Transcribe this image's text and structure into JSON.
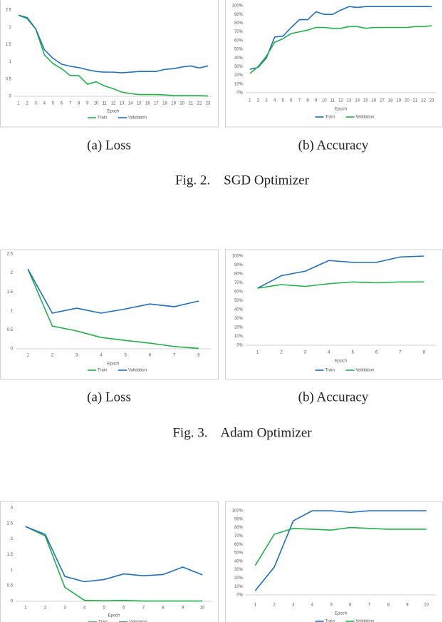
{
  "chart_data": [
    {
      "type": "line",
      "caption": "(a) Loss",
      "x_label": "Epoch",
      "categories": [
        1,
        2,
        3,
        4,
        5,
        6,
        7,
        8,
        9,
        10,
        11,
        12,
        13,
        14,
        15,
        16,
        17,
        18,
        19,
        20,
        21,
        22,
        23
      ],
      "series": [
        {
          "name": "Train",
          "color": "#22b04b",
          "values": [
            2.35,
            2.25,
            1.95,
            1.2,
            0.95,
            0.8,
            0.6,
            0.6,
            0.35,
            0.42,
            0.3,
            0.22,
            0.12,
            0.08,
            0.05,
            0.05,
            0.05,
            0.04,
            0.02,
            0.02,
            0.02,
            0.02,
            0.01
          ]
        },
        {
          "name": "Validation",
          "color": "#1f6fbf",
          "values": [
            2.35,
            2.28,
            1.95,
            1.35,
            1.1,
            0.93,
            0.87,
            0.83,
            0.77,
            0.72,
            0.7,
            0.7,
            0.68,
            0.7,
            0.72,
            0.72,
            0.72,
            0.78,
            0.8,
            0.85,
            0.88,
            0.82,
            0.88
          ]
        }
      ],
      "ylim": [
        0,
        2.5
      ],
      "yticks": [
        0,
        0.5,
        1,
        1.5,
        2,
        2.5
      ],
      "grid": false,
      "legend": "bottom"
    },
    {
      "type": "line",
      "caption": "(b) Accuracy",
      "x_label": "Epoch",
      "categories": [
        1,
        2,
        3,
        4,
        5,
        6,
        7,
        8,
        9,
        10,
        11,
        12,
        13,
        14,
        15,
        16,
        17,
        18,
        19,
        20,
        21,
        22,
        23
      ],
      "series": [
        {
          "name": "Train",
          "color": "#1f6fbf",
          "values": [
            27,
            29,
            40,
            64,
            65,
            75,
            84,
            84,
            93,
            90,
            90,
            95,
            99,
            98,
            99,
            99,
            99,
            99,
            99,
            99,
            99,
            99,
            99
          ]
        },
        {
          "name": "Validation",
          "color": "#22b04b",
          "values": [
            22,
            30,
            42,
            58,
            62,
            68,
            70,
            72,
            75,
            75,
            74,
            74,
            76,
            76,
            74,
            75,
            75,
            75,
            75,
            75,
            76,
            76,
            77
          ]
        }
      ],
      "ylim": [
        0,
        100
      ],
      "yticks": [
        {
          "value": 0,
          "label": "0%"
        },
        {
          "value": 10,
          "label": "10%"
        },
        {
          "value": 20,
          "label": "20%"
        },
        {
          "value": 30,
          "label": "30%"
        },
        {
          "value": 40,
          "label": "40%"
        },
        {
          "value": 50,
          "label": "50%"
        },
        {
          "value": 60,
          "label": "60%"
        },
        {
          "value": 70,
          "label": "70%"
        },
        {
          "value": 80,
          "label": "80%"
        },
        {
          "value": 90,
          "label": "90%"
        },
        {
          "value": 100,
          "label": "100%"
        }
      ],
      "grid": false,
      "legend": "bottom"
    },
    {
      "type": "line",
      "caption": "(a) Loss",
      "x_label": "Epoch",
      "categories": [
        1,
        2,
        3,
        4,
        5,
        6,
        7,
        8
      ],
      "series": [
        {
          "name": "Train",
          "color": "#22b04b",
          "values": [
            2.1,
            0.6,
            0.47,
            0.3,
            0.22,
            0.15,
            0.06,
            0.01
          ]
        },
        {
          "name": "Validation",
          "color": "#1f6fbf",
          "values": [
            2.1,
            0.94,
            1.07,
            0.94,
            1.05,
            1.18,
            1.11,
            1.26
          ]
        }
      ],
      "ylim": [
        0,
        2.5
      ],
      "yticks": [
        0,
        0.5,
        1,
        1.5,
        2,
        2.5
      ],
      "grid": false,
      "legend": "bottom"
    },
    {
      "type": "line",
      "caption": "(b) Accuracy",
      "x_label": "Epoch",
      "categories": [
        1,
        2,
        3,
        4,
        5,
        6,
        7,
        8
      ],
      "series": [
        {
          "name": "Train",
          "color": "#1f6fbf",
          "values": [
            64,
            78,
            83,
            95,
            93,
            93,
            99,
            100
          ]
        },
        {
          "name": "Validation",
          "color": "#22b04b",
          "values": [
            64,
            68,
            66,
            69,
            71,
            70,
            71,
            71
          ]
        }
      ],
      "ylim": [
        0,
        100
      ],
      "yticks": [
        {
          "value": 0,
          "label": "0%"
        },
        {
          "value": 10,
          "label": "10%"
        },
        {
          "value": 20,
          "label": "20%"
        },
        {
          "value": 30,
          "label": "30%"
        },
        {
          "value": 40,
          "label": "40%"
        },
        {
          "value": 50,
          "label": "50%"
        },
        {
          "value": 60,
          "label": "60%"
        },
        {
          "value": 70,
          "label": "70%"
        },
        {
          "value": 80,
          "label": "80%"
        },
        {
          "value": 90,
          "label": "90%"
        },
        {
          "value": 100,
          "label": "100%"
        }
      ],
      "grid": false,
      "legend": "bottom"
    },
    {
      "type": "line",
      "x_label": "Epoch",
      "categories": [
        1,
        2,
        3,
        4,
        5,
        6,
        7,
        8,
        9,
        10
      ],
      "series": [
        {
          "name": "Train",
          "color": "#22b04b",
          "values": [
            2.4,
            2.1,
            0.45,
            0.03,
            0.02,
            0.03,
            0.01,
            0.01,
            0.01,
            0.01
          ]
        },
        {
          "name": "Validation",
          "color": "#1f6fbf",
          "values": [
            2.4,
            2.15,
            0.8,
            0.63,
            0.7,
            0.88,
            0.82,
            0.86,
            1.1,
            0.85
          ]
        }
      ],
      "ylim": [
        0,
        3
      ],
      "yticks": [
        0,
        0.5,
        1,
        1.5,
        2,
        2.5,
        3
      ],
      "grid": false,
      "legend": "bottom"
    },
    {
      "type": "line",
      "x_label": "Epoch",
      "categories": [
        1,
        2,
        3,
        4,
        5,
        6,
        7,
        8,
        9,
        10
      ],
      "series": [
        {
          "name": "Train",
          "color": "#1f6fbf",
          "values": [
            5,
            33,
            88,
            100,
            100,
            98,
            100,
            100,
            100,
            100
          ]
        },
        {
          "name": "Validation",
          "color": "#22b04b",
          "values": [
            35,
            72,
            79,
            78,
            77,
            80,
            79,
            78,
            78,
            78
          ]
        }
      ],
      "ylim": [
        0,
        100
      ],
      "yticks": [
        {
          "value": 0,
          "label": "0%"
        },
        {
          "value": 10,
          "label": "10%"
        },
        {
          "value": 20,
          "label": "20%"
        },
        {
          "value": 30,
          "label": "30%"
        },
        {
          "value": 40,
          "label": "40%"
        },
        {
          "value": 50,
          "label": "50%"
        },
        {
          "value": 60,
          "label": "60%"
        },
        {
          "value": 70,
          "label": "70%"
        },
        {
          "value": 80,
          "label": "80%"
        },
        {
          "value": 90,
          "label": "90%"
        },
        {
          "value": 100,
          "label": "100%"
        }
      ],
      "grid": false,
      "legend": "bottom"
    }
  ],
  "figures": [
    {
      "caption": "Fig. 2.    SGD Optimizer"
    },
    {
      "caption": "Fig. 3.    Adam Optimizer"
    }
  ]
}
